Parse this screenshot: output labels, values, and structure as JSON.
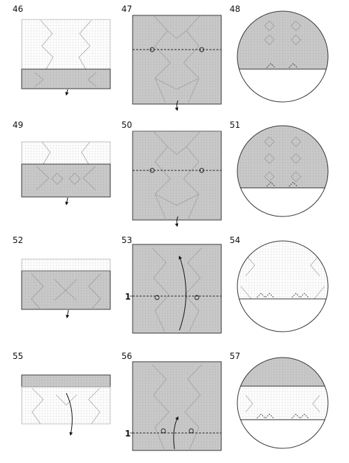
{
  "steps": [
    {
      "number": "46"
    },
    {
      "number": "47"
    },
    {
      "number": "48"
    },
    {
      "number": "49"
    },
    {
      "number": "50"
    },
    {
      "number": "51"
    },
    {
      "number": "52"
    },
    {
      "number": "53"
    },
    {
      "number": "54"
    },
    {
      "number": "55"
    },
    {
      "number": "56"
    },
    {
      "number": "57"
    }
  ],
  "callouts": {
    "step53_marker": "1",
    "step56_marker": "1"
  },
  "colors": {
    "paper_gray": "#c9c9c9",
    "paper_white": "#ffffff",
    "grid_line_on_white": "#d2d2d2",
    "grid_line_on_gray": "#b4b4b4",
    "crease_line": "#9a9a9a",
    "outline": "#333333",
    "fold_line": "#222222"
  },
  "icons": [
    "fold-arrow-icon",
    "turn-over-arrow-icon",
    "reference-point-icon"
  ]
}
